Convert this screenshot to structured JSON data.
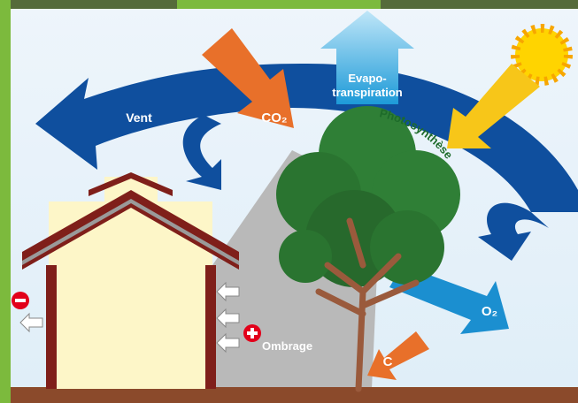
{
  "labels": {
    "vent": "Vent",
    "co2": "CO₂",
    "evapo_line1": "Evapo-",
    "evapo_line2": "transpiration",
    "photosynthese": "Photosynthèse",
    "o2": "O₂",
    "ombrage": "Ombrage",
    "c": "C"
  }
}
